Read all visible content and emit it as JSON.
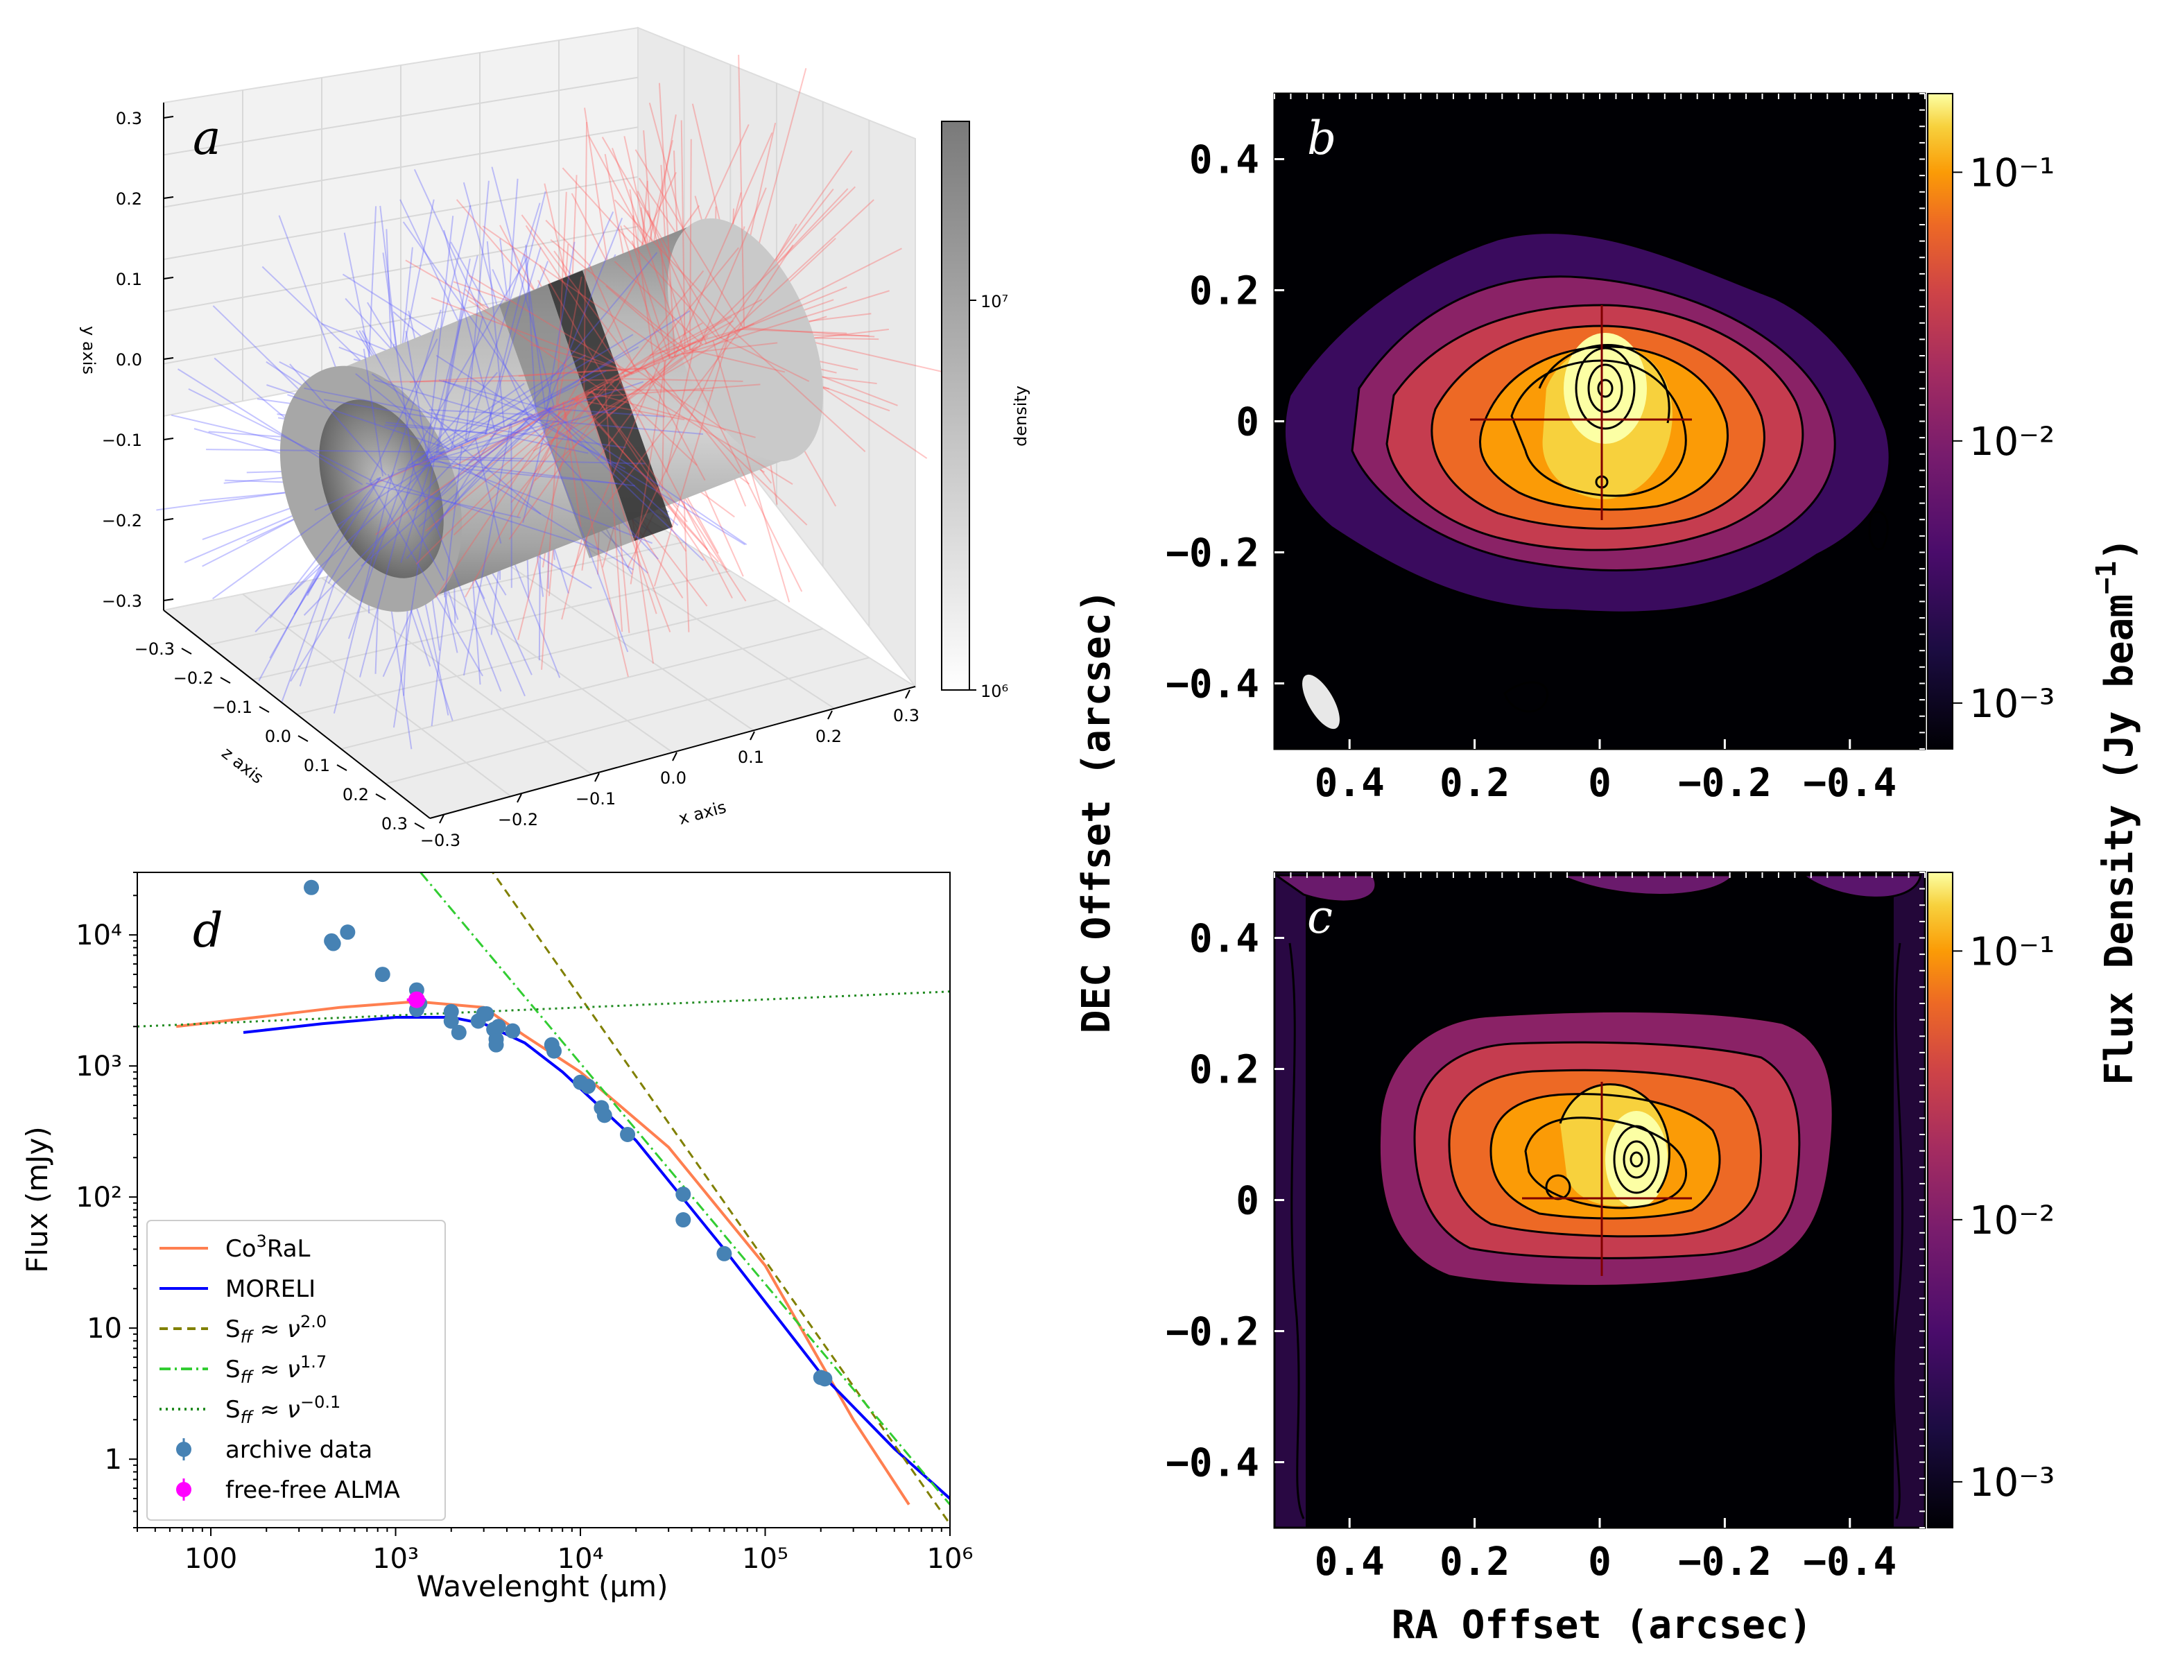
{
  "colors": {
    "cool_red": "#ff7f50",
    "blue": "#0000ff",
    "olive": "#808000",
    "lime": "#32cd32",
    "green": "#228b22",
    "steel": "#4682b4",
    "magenta": "#ff00ff"
  },
  "panel_a": {
    "letter": "a",
    "type": "3d",
    "x_axis_label": "x axis",
    "y_axis_label": "y axis",
    "z_axis_label": "z axis",
    "x_ticks": [
      "−0.3",
      "−0.2",
      "−0.1",
      "0.0",
      "0.1",
      "0.2",
      "0.3"
    ],
    "y_ticks": [
      "0.3",
      "0.2",
      "0.1",
      "0.0",
      "−0.1",
      "−0.2",
      "−0.3"
    ],
    "z_ticks": [
      "−0.3",
      "−0.2",
      "−0.1",
      "0.0",
      "0.1",
      "0.2",
      "0.3"
    ],
    "colorbar_label": "density",
    "colorbar_ticks": [
      "10⁶",
      "10⁷"
    ],
    "colorbar_range": [
      1000000,
      30000000
    ]
  },
  "panel_b": {
    "letter": "b",
    "type": "heatmap",
    "x_ticks": [
      "0.4",
      "0.2",
      "0",
      "−0.2",
      "−0.4"
    ],
    "y_ticks": [
      "0.4",
      "0.2",
      "0",
      "−0.2",
      "−0.4"
    ],
    "colorbar_ticks": [
      "10⁻¹",
      "10⁻²",
      "10⁻³"
    ]
  },
  "panel_c": {
    "letter": "c",
    "type": "heatmap",
    "x_ticks": [
      "0.4",
      "0.2",
      "0",
      "−0.2",
      "−0.4"
    ],
    "y_ticks": [
      "0.4",
      "0.2",
      "0",
      "−0.2",
      "−0.4"
    ],
    "colorbar_ticks": [
      "10⁻¹",
      "10⁻²",
      "10⁻³"
    ]
  },
  "maps_axes": {
    "xlabel": "RA Offset (arcsec)",
    "ylabel": "DEC Offset (arcsec)",
    "colorbar_label_main": "Flux Density (Jy beam",
    "colorbar_label_sup": "−1",
    "colorbar_label_close": ")"
  },
  "chart_data": {
    "type": "line",
    "panel_letter": "d",
    "xlabel": "Wavelenght (μm)",
    "ylabel": "Flux (mJy)",
    "xscale": "log",
    "yscale": "log",
    "xlim": [
      40,
      1000000
    ],
    "ylim": [
      0.3,
      30000
    ],
    "x_tick_labels": [
      "100",
      "10³",
      "10⁴",
      "10⁵",
      "10⁶"
    ],
    "y_tick_labels": [
      "1",
      "10",
      "10²",
      "10³",
      "10⁴"
    ],
    "series": [
      {
        "name": "Co³RaL",
        "style": "solid",
        "color": "#ff7f50",
        "x": [
          65,
          200,
          500,
          1300,
          3000,
          5000,
          10000,
          30000,
          100000,
          300000,
          600000
        ],
        "y": [
          2000,
          2400,
          2800,
          3100,
          2800,
          1700,
          900,
          240,
          30,
          2,
          0.45
        ]
      },
      {
        "name": "MORELI",
        "style": "solid",
        "color": "#0000ff",
        "x": [
          150,
          400,
          1000,
          2000,
          3000,
          5000,
          8000,
          20000,
          60000,
          200000,
          500000,
          1000000
        ],
        "y": [
          1800,
          2100,
          2350,
          2350,
          2100,
          1500,
          900,
          270,
          40,
          4.5,
          1.2,
          0.5
        ]
      },
      {
        "name": "S_ff ≈ ν^2.0",
        "style": "dashed",
        "color": "#808000",
        "x": [
          3200,
          1000000
        ],
        "y": [
          33000,
          0.32
        ]
      },
      {
        "name": "S_ff ≈ ν^1.7",
        "style": "dashdot",
        "color": "#32cd32",
        "x": [
          1150,
          1000000
        ],
        "y": [
          40000,
          0.45
        ]
      },
      {
        "name": "S_ff ≈ ν^−0.1",
        "style": "dotted",
        "color": "#228b22",
        "x": [
          40,
          1000000
        ],
        "y": [
          2000,
          3700
        ]
      }
    ],
    "points": [
      {
        "name": "archive data",
        "color": "#4682b4",
        "x": [
          350,
          450,
          460,
          550,
          850,
          1300,
          1300,
          1350,
          2000,
          2000,
          2200,
          2800,
          3000,
          3100,
          3400,
          3500,
          3500,
          3600,
          4300,
          7000,
          7200,
          10000,
          11000,
          13000,
          13500,
          18000,
          36000,
          36000,
          60000,
          200000,
          210000
        ],
        "y": [
          23000,
          9000,
          8600,
          10500,
          5000,
          3800,
          2700,
          3000,
          2600,
          2200,
          1800,
          2200,
          2500,
          2500,
          1900,
          1600,
          1450,
          2000,
          1850,
          1450,
          1300,
          750,
          700,
          480,
          420,
          300,
          105,
          67,
          37,
          4.2,
          4.1
        ]
      },
      {
        "name": "free-free ALMA",
        "color": "#ff00ff",
        "x": [
          1300
        ],
        "y": [
          3200
        ],
        "xerr": [
          1150,
          1450
        ]
      }
    ],
    "legend": {
      "position": "lower-left",
      "entries": [
        {
          "label": "Co",
          "sup": "3",
          "rest": "RaL"
        },
        {
          "label": "MORELI",
          "sup": "",
          "rest": ""
        },
        {
          "label": "S",
          "sub": "ff",
          "mid": " ≈ ν",
          "sup": "2.0"
        },
        {
          "label": "S",
          "sub": "ff",
          "mid": " ≈ ν",
          "sup": "1.7"
        },
        {
          "label": "S",
          "sub": "ff",
          "mid": " ≈ ν",
          "sup": "−0.1"
        },
        {
          "label": "archive data"
        },
        {
          "label": "free-free ALMA"
        }
      ]
    }
  }
}
